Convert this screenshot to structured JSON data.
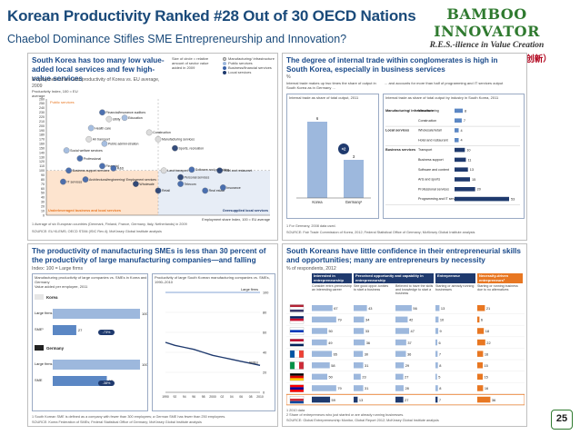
{
  "header": {
    "title": "Korean Productivity Ranked #28 Out of 30 OECD Nations",
    "subtitle": "Chaebol Dominance Stifles SME Entrepreneurship and Innovation?"
  },
  "logo": {
    "name": "BAMBOO INNOVATOR",
    "tagline": "R.E.S.-ilience in Value Creation",
    "chinese": "（竹经：经商经世不忘立根创新）"
  },
  "page_number": "25",
  "colors": {
    "title": "#1a4a7a",
    "accent_orange": "#e87722",
    "navy": "#1f3a6e",
    "mid_blue": "#5b87c4",
    "light_blue": "#9db8dd"
  },
  "panel_a": {
    "title": "South Korea has too many low value-added local services and few high-value services",
    "subtitle": "Employment share and productivity of Korea vs. EU average, 2009",
    "legend": [
      "Size of circle = relative amount of sector value added in 2009",
      "Manufacturing/ infrastructure",
      "Public services",
      "Business/financial services",
      "Local services"
    ],
    "yaxis": "Productivity Index, 100 = EU average",
    "xaxis": "Employment share Index, 100 = EU average",
    "left_label": "Public services",
    "underleveraged": "Underleveraged business and local services",
    "oversupplied": "Oversupplied local services",
    "footnote1": "1 Average of six European countries (Denmark, Finland, France, Germany, Italy, Netherlands) in 2009",
    "source": "SOURCE: EU KLEMS; OECD STAN (ISIC Rev.4); McKinsey Global Institute analysis"
  },
  "panel_b": {
    "title": "The degree of internal trade within conglomerates is high in South Korea, especially in business services",
    "unit": "%",
    "left_caption": "Internal trade makes up two times the share of output in South Korea as in Germany ...",
    "right_caption": "... and accounts for more than half of programming and IT services output",
    "left_box_title": "Internal trade as share of total output, 2011",
    "right_box_title": "Internal trade as share of total output by industry in South Korea, 2011",
    "footnote": "1 For Germany, 2008 data used.",
    "source": "SOURCE: Fair Trade Commission of Korea, 2012; Federal Statistical Office of Germany; McKinsey Global Institute analysis"
  },
  "panel_c": {
    "title": "The productivity of manufacturing SMEs is less than 30 percent of the productivity of large manufacturing companies—and falling",
    "subtitle": "Index: 100 = Large firms",
    "left_box_title": "Manufacturing productivity of large companies vs. SMEs in Korea and Germany",
    "left_box_sub": "Value added per employee, 2011",
    "right_box_title": "Productivity of large South Korean manufacturing companies vs. SMEs, 1990–2010",
    "footnote": "1 South Korean SME is defined as a company with fewer than 300 employees; a German SME has fewer than 250 employees.",
    "source": "SOURCE: Korea Federation of SMEs; Federal Statistical Office of Germany; McKinsey Global Institute analysis"
  },
  "panel_d": {
    "title": "South Koreans have little confidence in their entrepreneurial skills and opportunities; many are entrepreneurs by necessity",
    "unit": "% of respondents, 2012",
    "headers": [
      "Interested in entrepreneurship",
      "Perceived opportunity and capability in entrepreneurship",
      "Entrepreneur",
      "Necessity-driven entrepreneurs²"
    ],
    "subheaders": [
      "Consider entre-preneurship an interesting career",
      "See good oppor-tunities to start a business",
      "Believed to have the skills and knowledge to start a business",
      "Starting or already running businesses",
      "Starting or running business due to no alternatives"
    ],
    "footnote1": "1 2010 data",
    "footnote2": "2 Share of entrepreneurs who just started or are already running businesses.",
    "source": "SOURCE: Global Entrepreneurship Monitor, Global Report 2012; McKinsey Global Institute analysis"
  },
  "chart_data": [
    {
      "type": "scatter",
      "title": "Employment share and productivity of Korea vs. EU average, 2009",
      "xlabel": "Employment share Index, 100 = EU average",
      "ylabel": "Productivity Index, 100 = EU average",
      "xlim": [
        0,
        200
      ],
      "ylim": [
        0,
        260
      ],
      "yticks": [
        0,
        10,
        20,
        30,
        40,
        50,
        60,
        70,
        80,
        90,
        100,
        110,
        120,
        130,
        140,
        150,
        160,
        170,
        180,
        190,
        200,
        210,
        220,
        230,
        240,
        250,
        260
      ],
      "points": [
        {
          "label": "Financial/insurance auditors",
          "x": 50,
          "y": 230,
          "group": "business"
        },
        {
          "label": "Utility",
          "x": 56,
          "y": 215,
          "group": "manufacturing"
        },
        {
          "label": "Education",
          "x": 70,
          "y": 218,
          "group": "public"
        },
        {
          "label": "Health care",
          "x": 40,
          "y": 195,
          "group": "public"
        },
        {
          "label": "Construction",
          "x": 92,
          "y": 185,
          "group": "manufacturing"
        },
        {
          "label": "Air transport",
          "x": 38,
          "y": 170,
          "group": "manufacturing"
        },
        {
          "label": "Public admini-stration",
          "x": 52,
          "y": 160,
          "group": "public"
        },
        {
          "label": "Manufacturing services",
          "x": 100,
          "y": 170,
          "group": "manufacturing"
        },
        {
          "label": "Social welfare services",
          "x": 18,
          "y": 145,
          "group": "public"
        },
        {
          "label": "Sports, recreation",
          "x": 115,
          "y": 150,
          "group": "local"
        },
        {
          "label": "Professional",
          "x": 30,
          "y": 127,
          "group": "business"
        },
        {
          "label": "Financial",
          "x": 50,
          "y": 110,
          "group": "business"
        },
        {
          "label": "Land transport",
          "x": 105,
          "y": 100,
          "group": "manufacturing"
        },
        {
          "label": "Software and publishing",
          "x": 130,
          "y": 102,
          "group": "business"
        },
        {
          "label": "Hotel and restaurant",
          "x": 155,
          "y": 100,
          "group": "local"
        },
        {
          "label": "Personal services",
          "x": 120,
          "y": 85,
          "group": "local"
        },
        {
          "label": "Wholesale",
          "x": 80,
          "y": 70,
          "group": "local"
        },
        {
          "label": "Telecom",
          "x": 120,
          "y": 70,
          "group": "business"
        },
        {
          "label": "Retail",
          "x": 100,
          "y": 55,
          "group": "local"
        },
        {
          "label": "Real estate",
          "x": 142,
          "y": 55,
          "group": "business"
        },
        {
          "label": "Insurance",
          "x": 158,
          "y": 62,
          "group": "business"
        },
        {
          "label": "Business support services",
          "x": 20,
          "y": 100,
          "group": "business"
        },
        {
          "label": "Architectural/engineering/ Employment services",
          "x": 35,
          "y": 80,
          "group": "business"
        },
        {
          "label": "IT services",
          "x": 15,
          "y": 75,
          "group": "business"
        },
        {
          "label": "R&D",
          "x": 60,
          "y": 105,
          "group": "business"
        }
      ]
    },
    {
      "type": "bar",
      "title": "Internal trade as share of total output, 2011",
      "categories": [
        "Korea",
        "Germany¹"
      ],
      "values": [
        6,
        3
      ],
      "annotation": "×2"
    },
    {
      "type": "bar",
      "title": "Internal trade as share of total output by industry in South Korea, 2011",
      "groups": [
        {
          "name": "Manufacturing/ infrastructure",
          "categories": [
            "Manufacturing",
            "Construction"
          ],
          "values": [
            8,
            7
          ]
        },
        {
          "name": "Local services",
          "categories": [
            "Wholesale/retail",
            "Hotel and restaurant"
          ],
          "values": [
            4,
            4
          ]
        },
        {
          "name": "Business services",
          "categories": [
            "Transport",
            "Business support",
            "Software and content",
            "Arts and sports",
            "Professional services",
            "Programming and IT services"
          ],
          "values": [
            10,
            11,
            13,
            15,
            20,
            53
          ]
        }
      ]
    },
    {
      "type": "bar",
      "title": "Manufacturing productivity of large companies vs. SMEs in Korea and Germany",
      "groups": [
        {
          "name": "Korea",
          "categories": [
            "Large firms",
            "SME¹"
          ],
          "values": [
            100,
            27
          ],
          "gap": "-73%"
        },
        {
          "name": "Germany",
          "categories": [
            "Large firms",
            "SME"
          ],
          "values": [
            100,
            62
          ],
          "gap": "-38%"
        }
      ],
      "xlim": [
        0,
        100
      ]
    },
    {
      "type": "line",
      "title": "Productivity of large South Korean manufacturing companies vs. SMEs, 1990–2010",
      "x": [
        1990,
        1992,
        1994,
        1996,
        1998,
        2000,
        2002,
        2004,
        2006,
        2008,
        2010
      ],
      "series": [
        {
          "name": "Large firms",
          "values": [
            100,
            100,
            100,
            100,
            100,
            100,
            100,
            100,
            100,
            100,
            100
          ]
        },
        {
          "name": "SMEs",
          "values": [
            50,
            47,
            45,
            43,
            40,
            37,
            35,
            33,
            31,
            29,
            27
          ]
        }
      ],
      "ylim": [
        0,
        100
      ],
      "yticks": [
        0,
        20,
        40,
        60,
        80,
        100
      ],
      "xticklabels": [
        "1990",
        "92",
        "94",
        "96",
        "98",
        "2000",
        "02",
        "04",
        "06",
        "08",
        "2010"
      ]
    },
    {
      "type": "table",
      "title": "South Koreans have little confidence in their entrepreneurial skills and opportunities",
      "columns": [
        "Consider entrepreneurship an interesting career",
        "See good opportunities to start a business",
        "Believed to have the skills and knowledge to start a business",
        "Starting or already running businesses",
        "Starting or running business due to no alternatives"
      ],
      "rows": [
        {
          "country": "United States",
          "flag": "us",
          "values": [
            67,
            43,
            56,
            13,
            21
          ]
        },
        {
          "country": "United Kingdom",
          "flag": "uk",
          "values": [
            79,
            34,
            42,
            10,
            6
          ]
        },
        {
          "country": "Israel",
          "flag": "il",
          "values": [
            50,
            33,
            47,
            9,
            18
          ]
        },
        {
          "country": "Norway",
          "flag": "no",
          "values": [
            49,
            36,
            37,
            6,
            22
          ]
        },
        {
          "country": "France",
          "flag": "fr",
          "values": [
            65,
            30,
            36,
            7,
            16
          ]
        },
        {
          "country": "Italy",
          "flag": "it",
          "values": [
            58,
            31,
            29,
            8,
            15
          ]
        },
        {
          "country": "Germany",
          "flag": "de",
          "values": [
            50,
            23,
            27,
            5,
            15
          ]
        },
        {
          "country": "Taiwan",
          "flag": "tw",
          "values": [
            79,
            31,
            28,
            8,
            16
          ]
        },
        {
          "country": "South Korea",
          "flag": "kr",
          "values": [
            59,
            13,
            27,
            7,
            36
          ]
        }
      ]
    }
  ]
}
